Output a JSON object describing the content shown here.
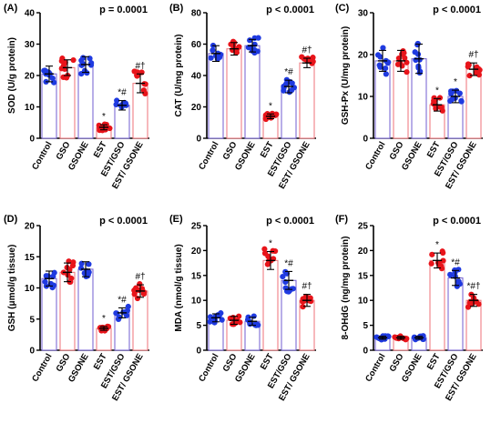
{
  "chart_data": [
    {
      "type": "bar",
      "panel": "(A)",
      "p_value": "p = 0.0001",
      "ylabel": "SOD (U/g protein)",
      "ylim": [
        0,
        40
      ],
      "yticks": [
        0,
        10,
        20,
        30,
        40
      ],
      "categories": [
        "Control",
        "GSO",
        "GSONE",
        "EST",
        "EST/GSO",
        "EST/ GSONE"
      ],
      "values": [
        20.5,
        22.5,
        23.5,
        3.5,
        10.5,
        17.5
      ],
      "errors": [
        2.5,
        2.5,
        2.5,
        0.8,
        1.5,
        3.0
      ],
      "annotations": [
        "",
        "",
        "",
        "*",
        "*#",
        "#†"
      ]
    },
    {
      "type": "bar",
      "panel": "(B)",
      "p_value": "p < 0.0001",
      "ylabel": "CAT (U/mg protein)",
      "ylim": [
        0,
        80
      ],
      "yticks": [
        0,
        20,
        40,
        60,
        80
      ],
      "categories": [
        "Control",
        "GSO",
        "GSONE",
        "EST",
        "EST/GSO",
        "EST/ GSONE"
      ],
      "values": [
        54,
        57,
        59,
        14,
        33,
        48
      ],
      "errors": [
        5,
        4,
        4,
        1.5,
        4,
        3
      ],
      "annotations": [
        "",
        "",
        "",
        "*",
        "*#",
        "#†"
      ]
    },
    {
      "type": "bar",
      "panel": "(C)",
      "p_value": "p < 0.0001",
      "ylabel": "GSH-Px (U/mg protein)",
      "ylim": [
        0,
        30
      ],
      "yticks": [
        0,
        10,
        20,
        30
      ],
      "categories": [
        "Control",
        "GSO",
        "GSONE",
        "EST",
        "EST/GSO",
        "EST/ GSONE"
      ],
      "values": [
        18.5,
        18.5,
        19,
        8,
        10,
        16.5
      ],
      "errors": [
        2.5,
        2.5,
        3.5,
        1.5,
        1.5,
        1.5
      ],
      "annotations": [
        "",
        "",
        "",
        "*",
        "*",
        "#†"
      ]
    },
    {
      "type": "bar",
      "panel": "(D)",
      "p_value": "p < 0.0001",
      "ylabel": "GSH (μmol/g tissue)",
      "ylim": [
        0,
        20
      ],
      "yticks": [
        0,
        5,
        10,
        15,
        20
      ],
      "categories": [
        "Control",
        "GSO",
        "GSONE",
        "EST",
        "EST/GSO",
        "EST/ GSONE"
      ],
      "values": [
        11.5,
        12.5,
        13,
        3.5,
        6,
        9.5
      ],
      "errors": [
        1.2,
        1.5,
        1.2,
        0.3,
        0.8,
        1
      ],
      "annotations": [
        "",
        "",
        "",
        "*",
        "*#",
        "#†"
      ]
    },
    {
      "type": "bar",
      "panel": "(E)",
      "p_value": "p < 0.0001",
      "ylabel": "MDA (nmol/g tissue)",
      "ylim": [
        0,
        25
      ],
      "yticks": [
        0,
        5,
        10,
        15,
        20,
        25
      ],
      "categories": [
        "Control",
        "GSO",
        "GSONE",
        "EST",
        "EST/GSO",
        "EST/ GSONE"
      ],
      "values": [
        6.5,
        6,
        5.8,
        18,
        14,
        10
      ],
      "errors": [
        0.8,
        0.8,
        0.8,
        1.8,
        1.8,
        1.2
      ],
      "annotations": [
        "",
        "",
        "",
        "*",
        "*#",
        "#†"
      ]
    },
    {
      "type": "bar",
      "panel": "(F)",
      "p_value": "p < 0.0001",
      "ylabel": "8-OHdG  (ng/mg protein)",
      "ylim": [
        0,
        25
      ],
      "yticks": [
        0,
        5,
        10,
        15,
        20,
        25
      ],
      "categories": [
        "Control",
        "GSO",
        "GSONE",
        "EST",
        "EST/GSO",
        "EST/ GSONE"
      ],
      "values": [
        2.5,
        2.5,
        2.5,
        18,
        14.5,
        10
      ],
      "errors": [
        0.3,
        0.3,
        0.3,
        1.5,
        1.5,
        1.2
      ],
      "annotations": [
        "",
        "",
        "",
        "*",
        "*#",
        "*#†"
      ]
    }
  ],
  "colors": {
    "blue": "#1f3ae0",
    "red": "#e8141a",
    "blue_bar_edge": "#7d6bd6",
    "red_bar_edge": "#f07e84",
    "bar_fill": "#ffffff"
  }
}
